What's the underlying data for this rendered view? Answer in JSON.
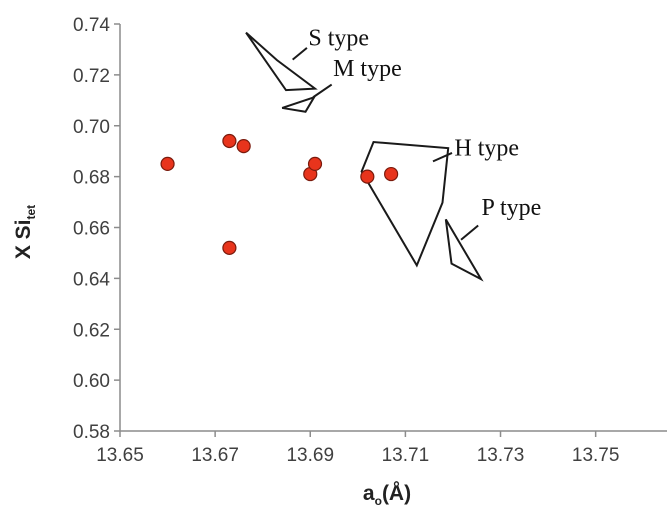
{
  "chart_data": {
    "type": "scatter",
    "title": "",
    "xlabel": {
      "main": "a",
      "sub": "o",
      "unit": "(Å)"
    },
    "ylabel": {
      "main": "X Si",
      "sub": "tet"
    },
    "xlim": [
      13.65,
      13.765
    ],
    "ylim": [
      0.58,
      0.74
    ],
    "x_ticks": [
      "13.65",
      "13.67",
      "13.69",
      "13.71",
      "13.73",
      "13.75"
    ],
    "y_ticks": [
      "0.58",
      "0.60",
      "0.62",
      "0.64",
      "0.66",
      "0.68",
      "0.70",
      "0.72",
      "0.74"
    ],
    "grid": false,
    "point_color": "#e8341c",
    "points": [
      {
        "x": 13.66,
        "y": 0.685
      },
      {
        "x": 13.673,
        "y": 0.694
      },
      {
        "x": 13.676,
        "y": 0.692
      },
      {
        "x": 13.673,
        "y": 0.652
      },
      {
        "x": 13.69,
        "y": 0.681
      },
      {
        "x": 13.691,
        "y": 0.685
      },
      {
        "x": 13.702,
        "y": 0.68
      },
      {
        "x": 13.707,
        "y": 0.681
      }
    ],
    "regions": [
      {
        "label": "S type",
        "polygon": [
          [
            13.6765,
            0.7366
          ],
          [
            13.6849,
            0.714
          ],
          [
            13.691,
            0.7146
          ],
          [
            13.683,
            0.7258
          ]
        ],
        "leader": [
          [
            13.6863,
            0.726
          ],
          [
            13.6893,
            0.7306
          ]
        ],
        "label_at": [
          13.6896,
          0.7315
        ]
      },
      {
        "label": "M type",
        "polygon": [
          [
            13.6841,
            0.707
          ],
          [
            13.689,
            0.7055
          ],
          [
            13.6908,
            0.7112
          ]
        ],
        "leader": [
          [
            13.6906,
            0.7112
          ],
          [
            13.6945,
            0.7162
          ]
        ],
        "label_at": [
          13.6948,
          0.7195
        ]
      },
      {
        "label": "H type",
        "polygon": [
          [
            13.7008,
            0.682
          ],
          [
            13.7033,
            0.6936
          ],
          [
            13.719,
            0.6912
          ],
          [
            13.7178,
            0.6698
          ],
          [
            13.7124,
            0.6451
          ]
        ],
        "leader": [
          [
            13.7158,
            0.686
          ],
          [
            13.7198,
            0.6893
          ]
        ],
        "label_at": [
          13.7203,
          0.6883
        ]
      },
      {
        "label": "P type",
        "polygon": [
          [
            13.7185,
            0.6632
          ],
          [
            13.7197,
            0.6458
          ],
          [
            13.7259,
            0.6397
          ]
        ],
        "leader": [
          [
            13.7217,
            0.6552
          ],
          [
            13.7253,
            0.6608
          ]
        ],
        "label_at": [
          13.726,
          0.665
        ]
      }
    ]
  }
}
